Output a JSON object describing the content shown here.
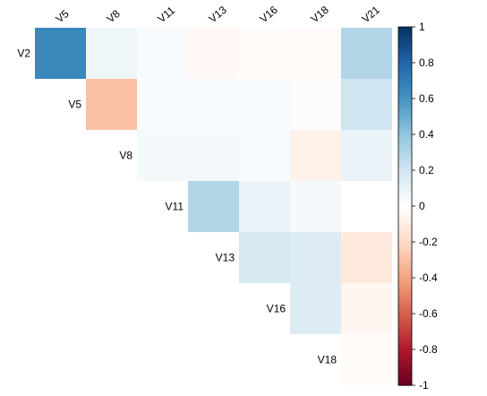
{
  "chart_data": {
    "type": "heatmap",
    "layout": "upper-triangle correlation matrix",
    "row_labels": [
      "V2",
      "V5",
      "V8",
      "V11",
      "V13",
      "V16",
      "V18"
    ],
    "col_labels": [
      "V5",
      "V8",
      "V11",
      "V13",
      "V16",
      "V18",
      "V21"
    ],
    "values": [
      [
        0.65,
        0.07,
        0.03,
        -0.04,
        -0.02,
        -0.03,
        0.3
      ],
      [
        null,
        -0.3,
        0.03,
        0.03,
        0.03,
        0.02,
        0.2
      ],
      [
        null,
        null,
        0.05,
        0.05,
        0.03,
        -0.08,
        0.09
      ],
      [
        null,
        null,
        null,
        0.3,
        0.09,
        0.05,
        0.0
      ],
      [
        null,
        null,
        null,
        null,
        0.18,
        0.15,
        -0.12
      ],
      [
        null,
        null,
        null,
        null,
        null,
        0.15,
        -0.05
      ],
      [
        null,
        null,
        null,
        null,
        null,
        null,
        -0.02
      ]
    ],
    "color_scale": {
      "range": [
        -1,
        1
      ],
      "low_color": "#67001f",
      "mid_color": "#ffffff",
      "high_color": "#053061"
    },
    "colorbar_ticks": [
      "1",
      "0.8",
      "0.6",
      "0.4",
      "0.2",
      "0",
      "-0.2",
      "-0.4",
      "-0.6",
      "-0.8",
      "-1"
    ],
    "legend_position": "right"
  }
}
